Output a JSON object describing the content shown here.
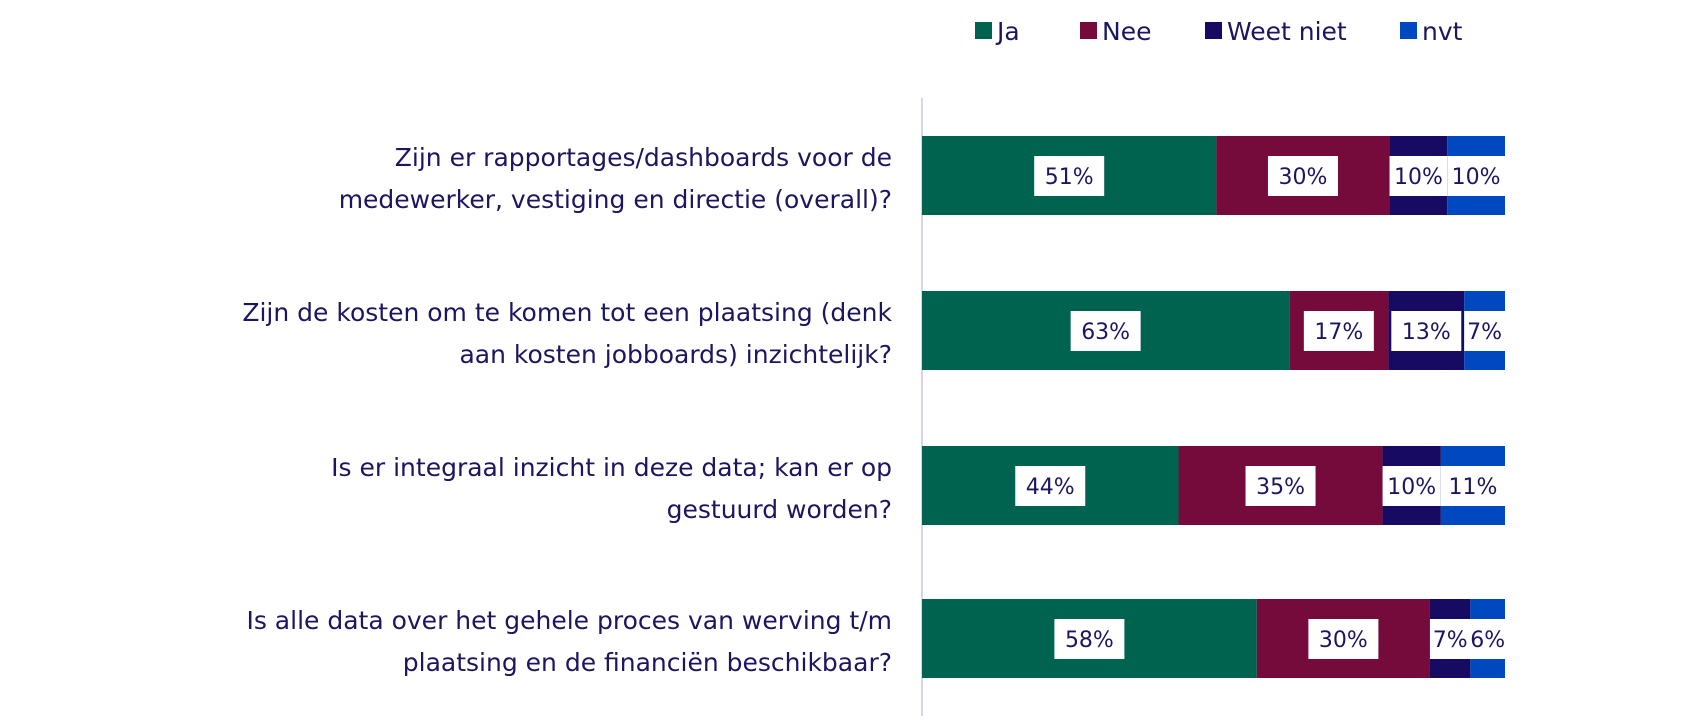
{
  "chart_data": {
    "type": "bar",
    "orientation": "horizontal",
    "stacked": true,
    "categories": [
      [
        "Zijn er rapportages/dashboards voor de",
        "medewerker, vestiging en directie (overall)?"
      ],
      [
        "Zijn de kosten om te komen tot een plaatsing (denk",
        "aan kosten jobboards) inzichtelijk?"
      ],
      [
        "Is er integraal inzicht in deze data; kan er op",
        "gestuurd worden?"
      ],
      [
        "Is alle data over het gehele proces van werving t/m",
        "plaatsing en de financiën beschikbaar?"
      ]
    ],
    "series": [
      {
        "name": "Ja",
        "color": "#006350",
        "values": [
          51,
          63,
          44,
          58
        ]
      },
      {
        "name": "Nee",
        "color": "#740b3b",
        "values": [
          30,
          17,
          35,
          30
        ]
      },
      {
        "name": "Weet niet",
        "color": "#160a62",
        "values": [
          10,
          13,
          10,
          7
        ]
      },
      {
        "name": "nvt",
        "color": "#0048bf",
        "values": [
          10,
          7,
          11,
          6
        ]
      }
    ],
    "value_suffix": "%",
    "legend_position": "top",
    "grid": false
  }
}
